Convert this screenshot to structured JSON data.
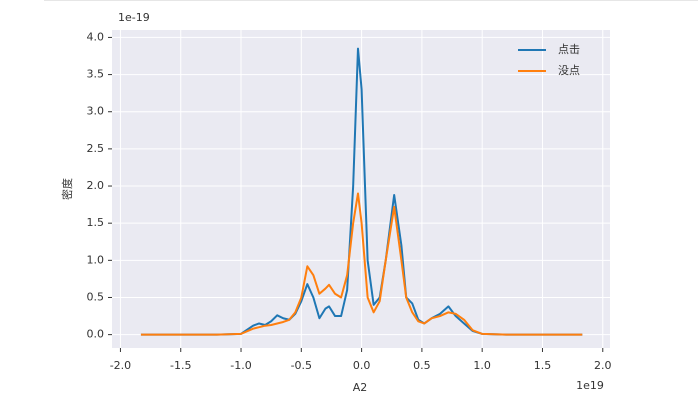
{
  "chart_data": {
    "type": "line",
    "x_label": "A2",
    "y_label": "密度",
    "x_offset_label": "1e19",
    "y_offset_label": "1e-19",
    "x": [
      -1.83,
      -1.2,
      -1.0,
      -0.9,
      -0.85,
      -0.8,
      -0.75,
      -0.7,
      -0.65,
      -0.6,
      -0.55,
      -0.5,
      -0.45,
      -0.4,
      -0.35,
      -0.3,
      -0.27,
      -0.22,
      -0.17,
      -0.12,
      -0.07,
      -0.03,
      0.0,
      0.05,
      0.1,
      0.15,
      0.2,
      0.27,
      0.33,
      0.37,
      0.42,
      0.47,
      0.52,
      0.58,
      0.65,
      0.72,
      0.78,
      0.85,
      0.92,
      1.0,
      1.2,
      1.83
    ],
    "series": [
      {
        "name": "点击",
        "color": "#1f77b4",
        "values": [
          0,
          0,
          0.01,
          0.12,
          0.15,
          0.13,
          0.18,
          0.26,
          0.22,
          0.2,
          0.28,
          0.45,
          0.68,
          0.5,
          0.22,
          0.35,
          0.38,
          0.25,
          0.25,
          0.6,
          2.0,
          3.85,
          3.3,
          1.0,
          0.4,
          0.5,
          1.0,
          1.88,
          1.2,
          0.5,
          0.42,
          0.2,
          0.15,
          0.22,
          0.28,
          0.38,
          0.25,
          0.15,
          0.05,
          0.01,
          0,
          0
        ]
      },
      {
        "name": "没点",
        "color": "#ff7f0e",
        "values": [
          0,
          0,
          0.01,
          0.08,
          0.1,
          0.12,
          0.13,
          0.15,
          0.17,
          0.2,
          0.3,
          0.5,
          0.92,
          0.8,
          0.55,
          0.62,
          0.67,
          0.55,
          0.5,
          0.8,
          1.5,
          1.9,
          1.5,
          0.5,
          0.3,
          0.45,
          1.0,
          1.72,
          1.0,
          0.5,
          0.3,
          0.18,
          0.15,
          0.22,
          0.25,
          0.3,
          0.28,
          0.2,
          0.06,
          0.01,
          0,
          0
        ]
      }
    ],
    "xlim": [
      -2.07,
      2.06
    ],
    "ylim": [
      -0.18,
      4.1
    ],
    "xticks": [
      {
        "value": -2.0,
        "label": "-2.0"
      },
      {
        "value": -1.5,
        "label": "-1.5"
      },
      {
        "value": -1.0,
        "label": "-1.0"
      },
      {
        "value": -0.5,
        "label": "-0.5"
      },
      {
        "value": 0.0,
        "label": "0.0"
      },
      {
        "value": 0.5,
        "label": "0.5"
      },
      {
        "value": 1.0,
        "label": "1.0"
      },
      {
        "value": 1.5,
        "label": "1.5"
      },
      {
        "value": 2.0,
        "label": "2.0"
      }
    ],
    "yticks": [
      {
        "value": 0.0,
        "label": "0.0"
      },
      {
        "value": 0.5,
        "label": "0.5"
      },
      {
        "value": 1.0,
        "label": "1.0"
      },
      {
        "value": 1.5,
        "label": "1.5"
      },
      {
        "value": 2.0,
        "label": "2.0"
      },
      {
        "value": 2.5,
        "label": "2.5"
      },
      {
        "value": 3.0,
        "label": "3.0"
      },
      {
        "value": 3.5,
        "label": "3.5"
      },
      {
        "value": 4.0,
        "label": "4.0"
      }
    ],
    "grid": true,
    "legend": "upper right"
  }
}
